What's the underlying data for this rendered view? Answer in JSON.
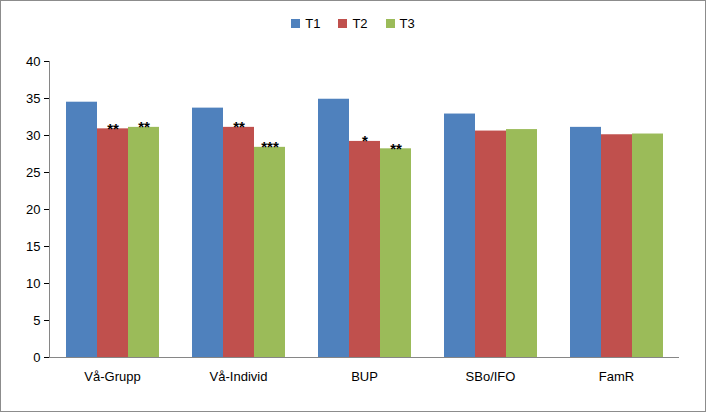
{
  "chart_data": {
    "type": "bar",
    "categories": [
      "Vå-Grupp",
      "Vå-Individ",
      "BUP",
      "SBo/IFO",
      "FamR"
    ],
    "series": [
      {
        "name": "T1",
        "color": "#4f81bd",
        "values": [
          34.5,
          33.7,
          34.9,
          32.9,
          31.1
        ],
        "annotations": [
          null,
          null,
          null,
          null,
          null
        ]
      },
      {
        "name": "T2",
        "color": "#c0504d",
        "values": [
          30.9,
          31.1,
          29.2,
          30.6,
          30.1
        ],
        "annotations": [
          "**",
          "**",
          "*",
          null,
          null
        ]
      },
      {
        "name": "T3",
        "color": "#9bbb59",
        "values": [
          31.1,
          28.4,
          28.2,
          30.8,
          30.2
        ],
        "annotations": [
          "**",
          "***",
          "**",
          null,
          null
        ]
      }
    ],
    "ylim": [
      0,
      40
    ],
    "yticks": [
      0,
      5,
      10,
      15,
      20,
      25,
      30,
      35,
      40
    ],
    "grid": false,
    "legend": "top"
  }
}
